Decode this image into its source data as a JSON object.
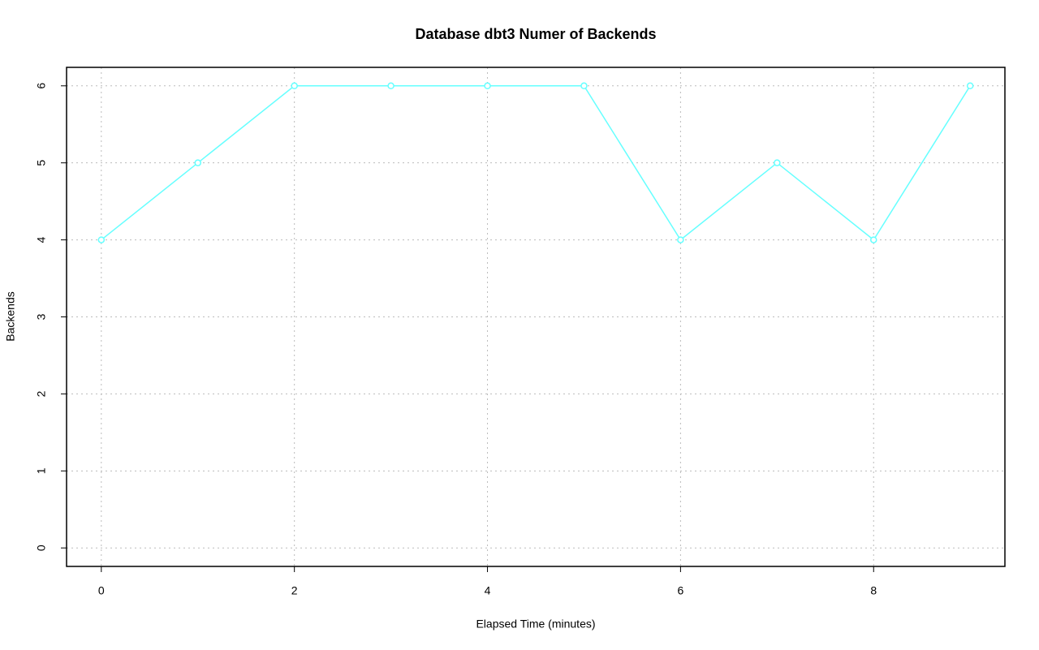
{
  "chart_data": {
    "type": "line",
    "title": "Database dbt3 Numer of Backends",
    "x_label": "Elapsed Time (minutes)",
    "y_label": "Backends",
    "x": [
      0,
      1,
      2,
      3,
      4,
      5,
      6,
      7,
      8,
      9
    ],
    "series": [
      {
        "name": "Backends",
        "color": "#66ffff",
        "values": [
          4,
          5,
          6,
          6,
          6,
          6,
          4,
          5,
          4,
          6
        ]
      }
    ],
    "xlim": [
      -0.36,
      9.36
    ],
    "xticks": [
      0,
      2,
      4,
      6,
      8
    ],
    "ylim": [
      -0.24,
      6.24
    ],
    "yticks": [
      0,
      1,
      2,
      3,
      4,
      5,
      6
    ],
    "grid": true,
    "markers": "open-circle"
  }
}
